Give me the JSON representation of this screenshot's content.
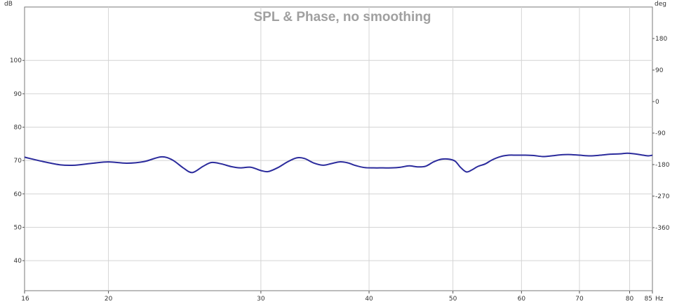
{
  "chart_data": {
    "type": "line",
    "title": "SPL & Phase, no smoothing",
    "xlabel": "Hz",
    "ylabel": "dB",
    "ylabel_right": "deg",
    "xlim": [
      16,
      85
    ],
    "ylim": [
      31,
      116
    ],
    "ylim_right": [
      -540,
      270
    ],
    "x_scale": "log",
    "grid": true,
    "x_ticks": [
      16,
      20,
      30,
      40,
      50,
      60,
      70,
      80,
      85
    ],
    "x_tick_labels": [
      "16",
      "20",
      "30",
      "40",
      "50",
      "60",
      "70",
      "80",
      "85"
    ],
    "y_ticks": [
      40,
      50,
      60,
      70,
      80,
      90,
      100
    ],
    "y_tick_labels": [
      "40",
      "50",
      "60",
      "70",
      "80",
      "90",
      "100"
    ],
    "y_right_ticks": [
      -360,
      -270,
      -180,
      -90,
      0,
      90,
      180
    ],
    "y_right_tick_labels": [
      "-360",
      "-270",
      "-180",
      "-90",
      "0",
      "90",
      "180"
    ],
    "series": [
      {
        "color": "#2b2b9c",
        "x": [
          16,
          16.8,
          17.6,
          18.3,
          19.2,
          20.0,
          21.0,
          22.0,
          23.0,
          23.7,
          24.4,
          25.0,
          25.7,
          26.3,
          27.0,
          27.7,
          28.4,
          29.2,
          30.0,
          30.6,
          31.4,
          32.2,
          33.0,
          33.7,
          34.5,
          35.4,
          36.2,
          37.0,
          37.8,
          38.6,
          39.5,
          40.5,
          41.5,
          42.5,
          43.5,
          44.5,
          45.5,
          46.5,
          47.5,
          48.5,
          49.5,
          50.3,
          51.0,
          51.8,
          52.6,
          53.4,
          54.5,
          55.5,
          56.8,
          58.0,
          59.2,
          60.6,
          62.0,
          63.5,
          65.0,
          66.5,
          68.0,
          70.0,
          72.0,
          74.0,
          76.0,
          78.0,
          79.5,
          81.0,
          82.5,
          84.0,
          85.0
        ],
        "y": [
          71.0,
          69.7,
          68.7,
          68.6,
          69.2,
          69.6,
          69.2,
          69.7,
          71.1,
          70.2,
          67.8,
          66.4,
          68.2,
          69.4,
          69.0,
          68.2,
          67.8,
          68.0,
          67.0,
          66.7,
          67.9,
          69.6,
          70.8,
          70.6,
          69.3,
          68.6,
          69.1,
          69.6,
          69.3,
          68.5,
          67.9,
          67.8,
          67.8,
          67.8,
          68.0,
          68.4,
          68.1,
          68.3,
          69.6,
          70.4,
          70.4,
          69.8,
          68.0,
          66.6,
          67.2,
          68.2,
          69.0,
          70.2,
          71.2,
          71.6,
          71.6,
          71.6,
          71.5,
          71.2,
          71.4,
          71.7,
          71.8,
          71.6,
          71.4,
          71.6,
          71.9,
          72.0,
          72.2,
          72.0,
          71.7,
          71.4,
          71.6
        ]
      }
    ]
  }
}
